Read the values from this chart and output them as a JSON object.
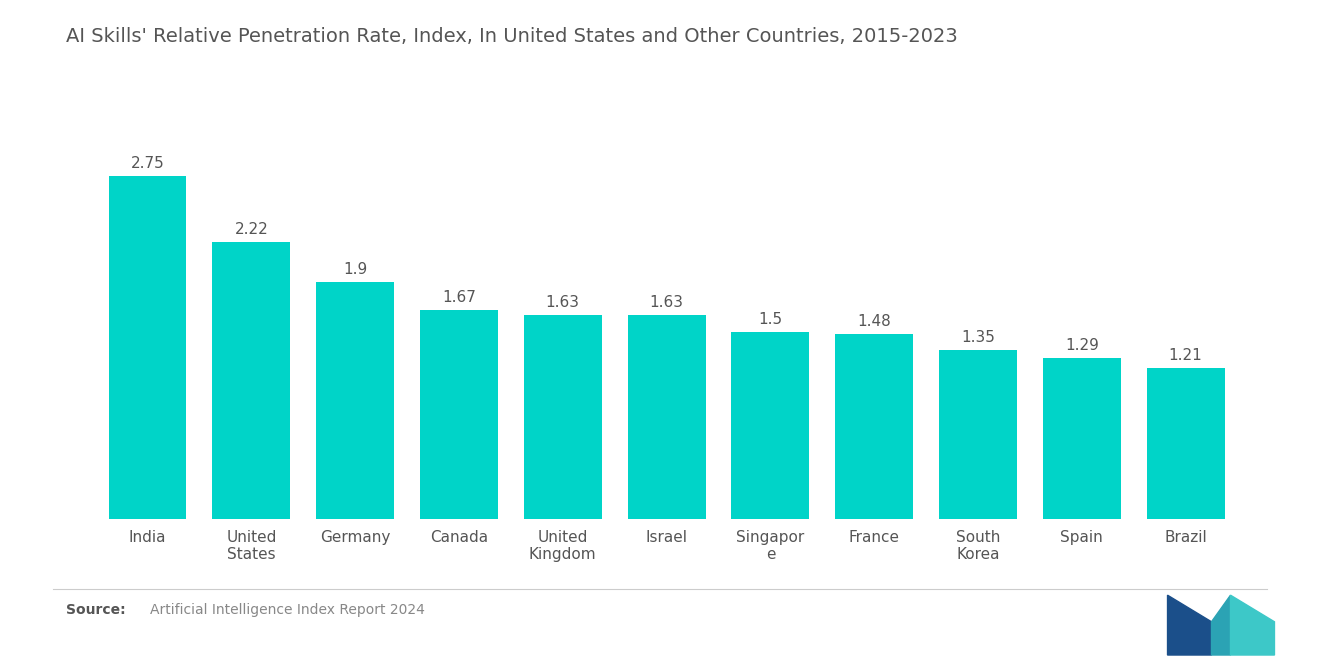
{
  "title": "AI Skills' Relative Penetration Rate, Index, In United States and Other Countries, 2015-2023",
  "categories": [
    "India",
    "United\nStates",
    "Germany",
    "Canada",
    "United\nKingdom",
    "Israel",
    "Singapor\ne",
    "France",
    "South\nKorea",
    "Spain",
    "Brazil"
  ],
  "values": [
    2.75,
    2.22,
    1.9,
    1.67,
    1.63,
    1.63,
    1.5,
    1.48,
    1.35,
    1.29,
    1.21
  ],
  "bar_color": "#00D4C8",
  "background_color": "#ffffff",
  "title_fontsize": 14,
  "label_fontsize": 11,
  "value_fontsize": 11,
  "source_bold": "Source:",
  "source_normal": "  Artificial Intelligence Index Report 2024",
  "ylim": [
    0,
    3.2
  ]
}
